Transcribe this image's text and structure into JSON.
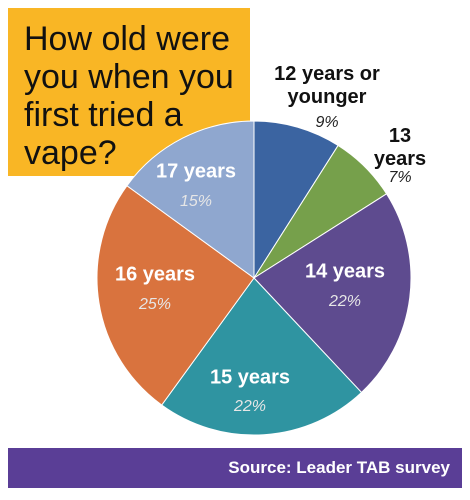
{
  "chart_data": {
    "type": "pie",
    "title": "How old were you when you first tried a vape?",
    "categories": [
      "12 years or younger",
      "13 years",
      "14 years",
      "15 years",
      "16 years",
      "17 years"
    ],
    "values": [
      9,
      7,
      22,
      22,
      25,
      15
    ],
    "value_labels": [
      "9%",
      "7%",
      "22%",
      "22%",
      "25%",
      "15%"
    ],
    "colors": [
      "#3b64a1",
      "#76a04b",
      "#5e4b8f",
      "#2f94a1",
      "#d9733e",
      "#8fa7cf"
    ],
    "source": "Source: Leader TAB survey"
  }
}
